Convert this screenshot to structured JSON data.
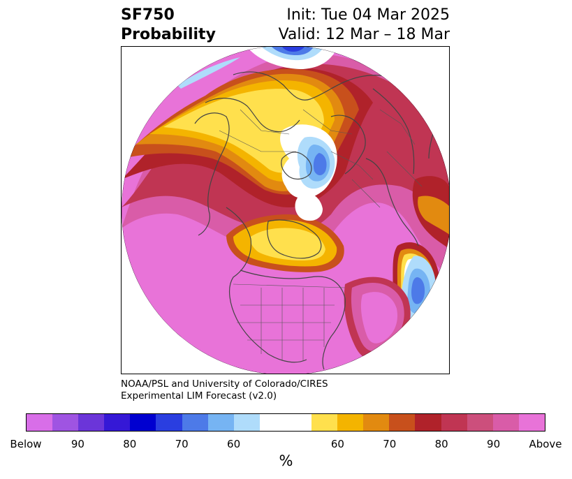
{
  "title": {
    "left_line1": "SF750",
    "left_line2": "Probability",
    "right_line1": "Init: Tue 04 Mar 2025",
    "right_line2": "Valid: 12 Mar – 18 Mar"
  },
  "credit": {
    "line1": "NOAA/PSL and University of Colorado/CIRES",
    "line2": "Experimental LIM Forecast (v2.0)"
  },
  "colorbar": {
    "unit": "%",
    "colors": [
      "#d86ee8",
      "#9f54e2",
      "#6b35d9",
      "#3518d6",
      "#0000d0",
      "#2a3ee0",
      "#4d7ae8",
      "#76b4f3",
      "#afdcfb",
      "#ffffff",
      "#ffffff",
      "#ffe04d",
      "#f4b400",
      "#e28a10",
      "#c8501c",
      "#b0222a",
      "#c03553",
      "#cc4f7c",
      "#d95ca8",
      "#e873d8"
    ],
    "labels": [
      {
        "text": "Below",
        "index": 0
      },
      {
        "text": "90",
        "index": 2
      },
      {
        "text": "80",
        "index": 4
      },
      {
        "text": "70",
        "index": 6
      },
      {
        "text": "60",
        "index": 8
      },
      {
        "text": "60",
        "index": 12
      },
      {
        "text": "70",
        "index": 14
      },
      {
        "text": "80",
        "index": 16
      },
      {
        "text": "90",
        "index": 18
      },
      {
        "text": "Above",
        "index": 20
      }
    ]
  },
  "map": {
    "projection": "polar stereographic (north)",
    "fill_colors": {
      "above_max": "#e873d8",
      "above_90": "#d95ca8",
      "above_80": "#c03553",
      "above_75": "#b0222a",
      "above_70": "#c8501c",
      "above_65": "#e28a10",
      "above_60": "#f4b400",
      "above_55": "#ffe04d",
      "neutral": "#ffffff",
      "below_55": "#afdcfb",
      "below_60": "#76b4f3",
      "below_70": "#4d7ae8",
      "below_80": "#2a3ee0"
    }
  }
}
